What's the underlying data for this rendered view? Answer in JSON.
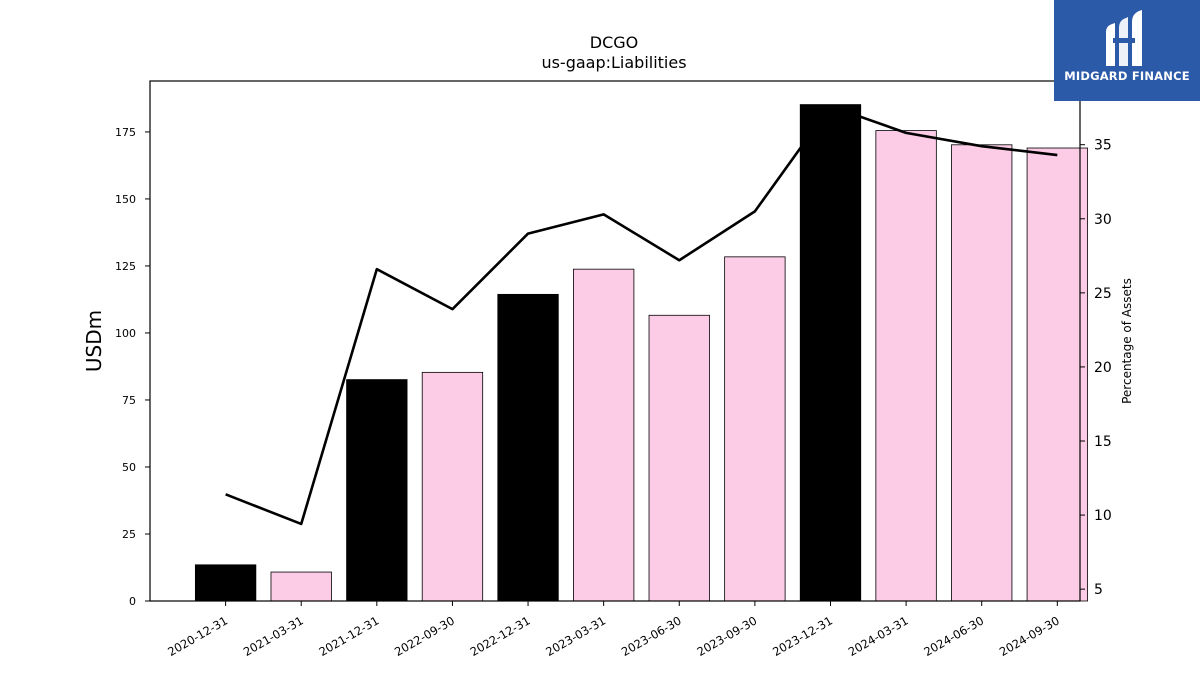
{
  "chart_data": {
    "type": "bar+line",
    "title": "DCGO",
    "subtitle": "us-gaap:Liabilities",
    "ylabel": "USDm",
    "y2label": "Percentage of Assets",
    "categories": [
      "2020-12-31",
      "2021-03-31",
      "2021-12-31",
      "2022-09-30",
      "2022-12-31",
      "2023-03-31",
      "2023-06-30",
      "2023-09-30",
      "2023-12-31",
      "2024-03-31",
      "2024-06-30",
      "2024-09-30"
    ],
    "bars": {
      "values": [
        13.5,
        10.8,
        82.6,
        85.3,
        114.4,
        123.8,
        106.6,
        128.4,
        185.2,
        175.5,
        170.2,
        169.0
      ],
      "annual_flags": [
        true,
        false,
        true,
        false,
        true,
        false,
        false,
        false,
        true,
        false,
        false,
        false
      ],
      "color_annual": "#000000",
      "color_quarterly": "#fccbe6"
    },
    "line": {
      "values": [
        11.4,
        9.4,
        26.6,
        23.9,
        29.0,
        30.3,
        27.2,
        30.5,
        37.6,
        35.8,
        34.9,
        34.3
      ],
      "color": "#000000"
    },
    "yticks": [
      0,
      25,
      50,
      75,
      100,
      125,
      150,
      175
    ],
    "y2ticks": [
      5,
      10,
      15,
      20,
      25,
      30,
      35
    ],
    "ylim": [
      0,
      194
    ],
    "y2lim": [
      4.2,
      39.3
    ],
    "grid": false,
    "legend": "none"
  },
  "logo": {
    "name": "MIDGARD FINANCE",
    "icon": "midgard-logo-icon",
    "background": "#2b5aa8"
  }
}
